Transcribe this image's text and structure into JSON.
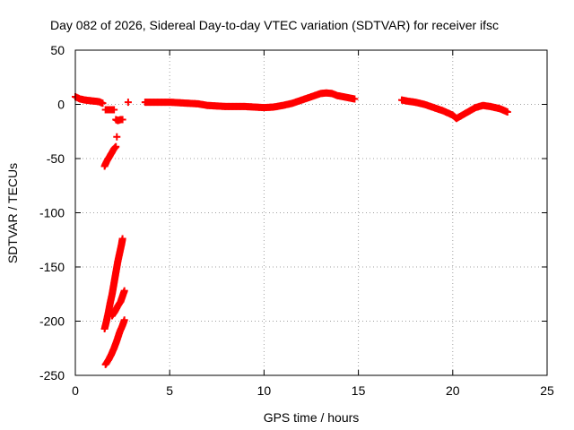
{
  "chart_data": {
    "type": "scatter",
    "title": "Day 082 of 2026, Sidereal Day-to-day VTEC variation (SDTVAR) for receiver ifsc",
    "xlabel": "GPS time / hours",
    "ylabel": "SDTVAR / TECUs",
    "xlim": [
      0,
      25
    ],
    "ylim": [
      -250,
      50
    ],
    "xticks": [
      0,
      5,
      10,
      15,
      20,
      25
    ],
    "yticks": [
      -250,
      -200,
      -150,
      -100,
      -50,
      0,
      50
    ],
    "grid": true,
    "legend": "none",
    "marker": "plus",
    "color": "#ff0000",
    "segments": [
      {
        "x": [
          0.0,
          0.25,
          0.5,
          0.75,
          1.0,
          1.25,
          1.45
        ],
        "y": [
          7,
          5,
          4,
          3.5,
          3,
          2.5,
          1
        ]
      },
      {
        "x": [
          1.6,
          1.75,
          1.9,
          2.05
        ],
        "y": [
          -5,
          -5,
          -5,
          -5
        ]
      },
      {
        "x": [
          2.15,
          2.25,
          2.4,
          2.5
        ],
        "y": [
          -14,
          -15,
          -14,
          -14
        ]
      },
      {
        "x": [
          2.2
        ],
        "y": [
          -30
        ]
      },
      {
        "x": [
          2.8
        ],
        "y": [
          2
        ]
      },
      {
        "x": [
          1.55,
          1.65,
          1.75,
          1.85,
          1.95,
          2.05,
          2.15
        ],
        "y": [
          -57,
          -53,
          -50,
          -47,
          -44,
          -41,
          -39
        ]
      },
      {
        "x": [
          1.55,
          1.65,
          1.75,
          1.85,
          1.95,
          2.05,
          2.15,
          2.25,
          2.35,
          2.45,
          2.5
        ],
        "y": [
          -207,
          -200,
          -192,
          -183,
          -175,
          -165,
          -155,
          -145,
          -137,
          -129,
          -124
        ]
      },
      {
        "x": [
          1.6,
          1.75,
          1.9,
          2.05,
          2.2,
          2.35,
          2.5,
          2.6
        ],
        "y": [
          -240,
          -236,
          -231,
          -225,
          -218,
          -210,
          -204,
          -199
        ]
      },
      {
        "x": [
          1.95,
          2.1,
          2.25,
          2.4,
          2.5,
          2.6
        ],
        "y": [
          -195,
          -191,
          -186,
          -182,
          -177,
          -172
        ]
      },
      {
        "x": [
          3.7,
          4.0,
          4.5,
          5.0,
          5.5,
          6.0,
          6.5,
          7.0,
          7.5,
          8.0,
          8.5,
          9.0,
          9.5,
          10.0,
          10.5,
          11.0,
          11.5,
          12.0,
          12.5,
          13.0,
          13.3,
          13.6,
          13.9,
          14.2,
          14.5,
          14.8
        ],
        "y": [
          2,
          2,
          2,
          2,
          1.5,
          1,
          0.5,
          -1,
          -1.5,
          -2,
          -2,
          -2,
          -2.5,
          -3,
          -2.5,
          -1,
          1,
          4,
          7,
          10,
          10.5,
          10,
          8,
          7,
          6,
          5
        ]
      },
      {
        "x": [
          17.3,
          17.6,
          18.0,
          18.5,
          19.0,
          19.5,
          20.0,
          20.2,
          20.5,
          20.8,
          21.2,
          21.6,
          22.0,
          22.5,
          22.9
        ],
        "y": [
          4,
          3,
          2,
          0,
          -3,
          -6,
          -10,
          -13,
          -10,
          -7,
          -3,
          -1,
          -2,
          -4,
          -7
        ]
      }
    ]
  }
}
